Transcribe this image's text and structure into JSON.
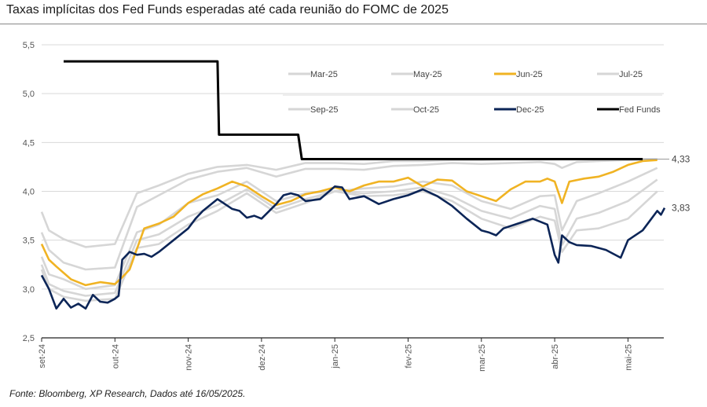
{
  "title": "Taxas implícitas dos Fed Funds esperadas até cada reunião do FOMC de 2025",
  "source": "Fonte: Bloomberg, XP Research, Dados até 16/05/2025.",
  "chart_data": {
    "type": "line",
    "title": "Taxas implícitas dos Fed Funds esperadas até cada reunião do FOMC de 2025",
    "xlabel": "",
    "ylabel": "",
    "ylim": [
      2.5,
      5.5
    ],
    "yticks": [
      "2,5",
      "3,0",
      "3,5",
      "4,0",
      "4,5",
      "5,0",
      "5,5"
    ],
    "ytick_values": [
      2.5,
      3.0,
      3.5,
      4.0,
      4.5,
      5.0,
      5.5
    ],
    "xticks": [
      "set-24",
      "out-24",
      "nov-24",
      "dez-24",
      "jan-25",
      "fev-25",
      "mar-25",
      "abr-25",
      "mai-25"
    ],
    "x_unit": "months since 2024-09-01",
    "xlim": [
      0,
      8.5
    ],
    "grid": true,
    "legend_position": "top-right",
    "colors": {
      "highlight_jun": "#f0b323",
      "highlight_dec": "#0c2557",
      "fed_funds": "#000000",
      "other": "#d6d6d6",
      "grid": "#d9d9d9"
    },
    "end_labels": [
      {
        "series": "Fed Funds",
        "text": "4,33",
        "value": 4.33
      },
      {
        "series": "Dec-25",
        "text": "3,83",
        "value": 3.83
      }
    ],
    "series": [
      {
        "name": "Mar-25",
        "color": "#d6d6d6",
        "x": [
          0,
          0.1,
          0.3,
          0.6,
          1.0,
          1.3,
          1.6,
          2.0,
          2.4,
          2.8,
          3.2,
          3.6,
          4.0,
          4.4,
          4.8,
          5.2,
          5.6,
          6.0,
          6.4,
          6.8,
          7.0,
          7.1,
          7.3,
          7.6,
          8.0,
          8.4
        ],
        "values": [
          3.79,
          3.6,
          3.51,
          3.43,
          3.46,
          3.98,
          4.06,
          4.18,
          4.25,
          4.27,
          4.22,
          4.29,
          4.29,
          4.28,
          4.31,
          4.31,
          4.32,
          4.32,
          4.33,
          4.33,
          4.33,
          4.33,
          4.33,
          4.33,
          4.33,
          4.33
        ]
      },
      {
        "name": "May-25",
        "color": "#d6d6d6",
        "x": [
          0,
          0.1,
          0.3,
          0.6,
          1.0,
          1.3,
          1.6,
          2.0,
          2.4,
          2.8,
          3.2,
          3.6,
          4.0,
          4.4,
          4.8,
          5.2,
          5.6,
          6.0,
          6.4,
          6.8,
          7.0,
          7.1,
          7.3,
          7.6,
          8.0,
          8.4
        ],
        "values": [
          3.58,
          3.4,
          3.27,
          3.2,
          3.22,
          3.84,
          3.96,
          4.12,
          4.2,
          4.24,
          4.15,
          4.23,
          4.23,
          4.22,
          4.26,
          4.27,
          4.29,
          4.28,
          4.29,
          4.3,
          4.28,
          4.24,
          4.3,
          4.31,
          4.32,
          4.33
        ]
      },
      {
        "name": "Jun-25",
        "color": "#f0b323",
        "x": [
          0,
          0.1,
          0.2,
          0.4,
          0.6,
          0.8,
          1.0,
          1.1,
          1.2,
          1.4,
          1.6,
          1.8,
          2.0,
          2.2,
          2.4,
          2.6,
          2.8,
          3.0,
          3.2,
          3.4,
          3.6,
          3.8,
          4.0,
          4.2,
          4.4,
          4.6,
          4.8,
          5.0,
          5.2,
          5.4,
          5.6,
          5.8,
          6.0,
          6.2,
          6.4,
          6.6,
          6.8,
          6.9,
          7.0,
          7.1,
          7.2,
          7.4,
          7.6,
          7.8,
          8.0,
          8.2,
          8.4
        ],
        "values": [
          3.46,
          3.3,
          3.23,
          3.1,
          3.04,
          3.07,
          3.05,
          3.12,
          3.2,
          3.62,
          3.67,
          3.74,
          3.88,
          3.97,
          4.03,
          4.1,
          4.05,
          3.95,
          3.86,
          3.9,
          3.97,
          4.0,
          4.04,
          4.0,
          4.06,
          4.1,
          4.1,
          4.14,
          4.05,
          4.12,
          4.11,
          4.0,
          3.95,
          3.9,
          4.02,
          4.1,
          4.1,
          4.13,
          4.1,
          3.88,
          4.1,
          4.13,
          4.15,
          4.2,
          4.27,
          4.31,
          4.32
        ]
      },
      {
        "name": "Jul-25",
        "color": "#d6d6d6",
        "x": [
          0,
          0.1,
          0.3,
          0.6,
          1.0,
          1.3,
          1.6,
          2.0,
          2.4,
          2.8,
          3.2,
          3.6,
          4.0,
          4.4,
          4.8,
          5.2,
          5.6,
          6.0,
          6.4,
          6.8,
          7.0,
          7.1,
          7.3,
          7.6,
          8.0,
          8.4
        ],
        "values": [
          3.33,
          3.15,
          3.1,
          3.0,
          3.04,
          3.58,
          3.66,
          3.88,
          3.96,
          4.1,
          3.9,
          3.98,
          4.0,
          4.03,
          4.05,
          4.1,
          4.06,
          3.9,
          3.82,
          3.95,
          3.96,
          3.6,
          3.9,
          3.98,
          4.1,
          4.24
        ]
      },
      {
        "name": "Sep-25",
        "color": "#d6d6d6",
        "x": [
          0,
          0.1,
          0.3,
          0.6,
          1.0,
          1.3,
          1.6,
          2.0,
          2.4,
          2.8,
          3.2,
          3.6,
          4.0,
          4.4,
          4.8,
          5.2,
          5.6,
          6.0,
          6.4,
          6.8,
          7.0,
          7.1,
          7.3,
          7.6,
          8.0,
          8.4
        ],
        "values": [
          3.25,
          3.05,
          2.98,
          2.93,
          2.96,
          3.5,
          3.56,
          3.74,
          3.86,
          4.02,
          3.82,
          3.92,
          4.0,
          3.98,
          4.0,
          4.04,
          3.95,
          3.8,
          3.72,
          3.85,
          3.82,
          3.45,
          3.72,
          3.78,
          3.9,
          4.12
        ]
      },
      {
        "name": "Oct-25",
        "color": "#d6d6d6",
        "x": [
          0,
          0.1,
          0.3,
          0.6,
          1.0,
          1.3,
          1.6,
          2.0,
          2.4,
          2.8,
          3.2,
          3.6,
          4.0,
          4.4,
          4.8,
          5.2,
          5.6,
          6.0,
          6.4,
          6.8,
          7.0,
          7.1,
          7.3,
          7.6,
          8.0,
          8.4
        ],
        "values": [
          3.2,
          3.0,
          2.92,
          2.88,
          2.9,
          3.42,
          3.46,
          3.66,
          3.8,
          3.98,
          3.78,
          3.88,
          4.0,
          3.95,
          3.96,
          4.0,
          3.9,
          3.72,
          3.62,
          3.74,
          3.7,
          3.38,
          3.6,
          3.62,
          3.72,
          4.0
        ]
      },
      {
        "name": "Dec-25",
        "color": "#0c2557",
        "x": [
          0,
          0.1,
          0.2,
          0.3,
          0.4,
          0.5,
          0.6,
          0.7,
          0.8,
          0.9,
          1.0,
          1.05,
          1.1,
          1.2,
          1.3,
          1.4,
          1.5,
          1.6,
          1.8,
          2.0,
          2.1,
          2.2,
          2.3,
          2.4,
          2.5,
          2.6,
          2.7,
          2.8,
          2.9,
          3.0,
          3.2,
          3.3,
          3.4,
          3.5,
          3.6,
          3.8,
          4.0,
          4.1,
          4.2,
          4.4,
          4.6,
          4.8,
          5.0,
          5.2,
          5.4,
          5.6,
          5.8,
          6.0,
          6.1,
          6.2,
          6.3,
          6.5,
          6.7,
          6.9,
          7.0,
          7.05,
          7.1,
          7.2,
          7.3,
          7.5,
          7.7,
          7.9,
          8.0,
          8.2,
          8.3,
          8.4,
          8.45,
          8.5
        ],
        "values": [
          3.14,
          3.0,
          2.8,
          2.9,
          2.81,
          2.85,
          2.8,
          2.94,
          2.87,
          2.86,
          2.9,
          2.93,
          3.3,
          3.38,
          3.35,
          3.36,
          3.33,
          3.38,
          3.5,
          3.62,
          3.72,
          3.8,
          3.86,
          3.92,
          3.87,
          3.82,
          3.8,
          3.73,
          3.75,
          3.72,
          3.87,
          3.96,
          3.98,
          3.96,
          3.9,
          3.92,
          4.05,
          4.04,
          3.92,
          3.95,
          3.87,
          3.92,
          3.96,
          4.02,
          3.95,
          3.85,
          3.72,
          3.6,
          3.58,
          3.55,
          3.62,
          3.67,
          3.72,
          3.66,
          3.35,
          3.27,
          3.55,
          3.48,
          3.45,
          3.44,
          3.4,
          3.32,
          3.5,
          3.6,
          3.7,
          3.8,
          3.76,
          3.83
        ]
      },
      {
        "name": "Fed Funds",
        "color": "#000000",
        "x": [
          0.3,
          2.4,
          2.42,
          3.5,
          3.55,
          8.2
        ],
        "values": [
          5.33,
          5.33,
          4.58,
          4.58,
          4.33,
          4.33
        ]
      }
    ]
  }
}
